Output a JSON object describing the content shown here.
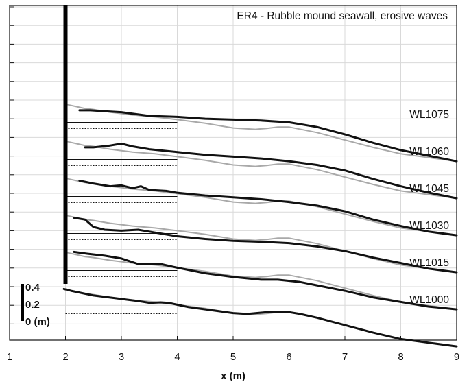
{
  "chart_data": {
    "type": "line",
    "title": "ER4 - Rubble mound seawall, erosive waves",
    "xlabel": "x (m)",
    "ylabel": "",
    "xlim": [
      1,
      9
    ],
    "x_ticks": [
      "1",
      "2",
      "3",
      "4",
      "5",
      "6",
      "7",
      "8",
      "9"
    ],
    "y_ticks_labeled": false,
    "grid": true,
    "offset_scale": {
      "labels": [
        "0.4",
        "0.2",
        "0 (m)"
      ]
    },
    "structure": {
      "name": "seawall",
      "x": 2.0
    },
    "colors": {
      "measured": "#111111",
      "reference": "#a9a9a9",
      "water": "#111111",
      "grid": "#d9d9d9"
    },
    "series": [
      {
        "name": "WL1000",
        "offset_m": 0.0,
        "x": [
          1.97,
          2.1,
          2.3,
          2.5,
          2.7,
          2.9,
          3.1,
          3.3,
          3.5,
          3.7,
          3.85,
          4.0,
          4.2,
          4.5,
          5.0,
          5.25,
          5.4,
          5.6,
          5.8,
          6.0,
          6.2,
          6.5,
          7.0,
          7.5,
          8.0,
          8.5,
          9.0
        ],
        "y": [
          0.33,
          0.31,
          0.285,
          0.26,
          0.245,
          0.23,
          0.215,
          0.2,
          0.18,
          0.185,
          0.18,
          0.16,
          0.135,
          0.11,
          0.07,
          0.06,
          0.068,
          0.08,
          0.085,
          0.08,
          0.06,
          0.02,
          -0.06,
          -0.14,
          -0.21,
          -0.25,
          -0.29
        ]
      },
      {
        "name": "WL1015",
        "offset_m": 0.4,
        "x": [
          2.15,
          2.4,
          2.7,
          3.0,
          3.3,
          3.5,
          3.7,
          4.0,
          4.5,
          5.0,
          5.5,
          5.8,
          6.2,
          6.5,
          7.0,
          7.5,
          8.0,
          8.5,
          9.0
        ],
        "y": [
          0.33,
          0.31,
          0.29,
          0.26,
          0.2,
          0.2,
          0.2,
          0.16,
          0.1,
          0.06,
          0.03,
          0.03,
          0.005,
          -0.03,
          -0.09,
          -0.16,
          -0.21,
          -0.26,
          -0.29
        ]
      },
      {
        "name": "WL1030",
        "offset_m": 0.8,
        "x": [
          2.15,
          2.35,
          2.5,
          2.7,
          3.0,
          3.3,
          3.5,
          4.0,
          4.5,
          5.0,
          5.5,
          6.0,
          6.5,
          7.0,
          7.5,
          8.0,
          8.5,
          9.0
        ],
        "y": [
          0.3,
          0.28,
          0.2,
          0.17,
          0.16,
          0.17,
          0.15,
          0.1,
          0.07,
          0.05,
          0.04,
          0.025,
          -0.01,
          -0.06,
          -0.13,
          -0.19,
          -0.25,
          -0.29
        ]
      },
      {
        "name": "WL1045",
        "offset_m": 1.2,
        "x": [
          2.25,
          2.5,
          2.8,
          3.0,
          3.2,
          3.35,
          3.5,
          3.8,
          4.0,
          4.5,
          5.0,
          5.5,
          6.0,
          6.5,
          7.0,
          7.5,
          8.0,
          8.5,
          9.0
        ],
        "y": [
          0.3,
          0.27,
          0.24,
          0.25,
          0.22,
          0.24,
          0.2,
          0.19,
          0.17,
          0.14,
          0.12,
          0.1,
          0.07,
          0.03,
          -0.03,
          -0.12,
          -0.19,
          -0.25,
          -0.29
        ]
      },
      {
        "name": "WL1060",
        "offset_m": 1.6,
        "x": [
          2.35,
          2.5,
          2.8,
          3.0,
          3.2,
          3.5,
          4.0,
          4.5,
          5.0,
          5.5,
          6.0,
          6.5,
          7.0,
          7.5,
          8.0,
          8.5,
          9.0
        ],
        "y": [
          0.26,
          0.26,
          0.28,
          0.3,
          0.27,
          0.24,
          0.21,
          0.18,
          0.16,
          0.14,
          0.11,
          0.07,
          0.01,
          -0.08,
          -0.16,
          -0.23,
          -0.29
        ]
      },
      {
        "name": "WL1075",
        "offset_m": 2.0,
        "x": [
          2.25,
          2.45,
          2.7,
          3.0,
          3.5,
          4.0,
          4.5,
          5.0,
          5.5,
          6.0,
          6.5,
          7.0,
          7.5,
          8.0,
          8.5,
          9.0
        ],
        "y": [
          0.26,
          0.26,
          0.25,
          0.24,
          0.2,
          0.19,
          0.17,
          0.16,
          0.15,
          0.13,
          0.08,
          0.0,
          -0.09,
          -0.17,
          -0.23,
          -0.29
        ]
      }
    ],
    "reference_profile": {
      "x": [
        1.97,
        2.05,
        2.2,
        2.35,
        2.5,
        2.8,
        3.2,
        3.6,
        4.0,
        4.5,
        5.0,
        5.4,
        5.6,
        5.8,
        6.0,
        6.5,
        7.0,
        7.5,
        8.0,
        8.5,
        9.0
      ],
      "y": [
        0.33,
        0.32,
        0.3,
        0.28,
        0.27,
        0.24,
        0.21,
        0.19,
        0.16,
        0.12,
        0.07,
        0.055,
        0.065,
        0.08,
        0.08,
        0.02,
        -0.06,
        -0.14,
        -0.21,
        -0.25,
        -0.29
      ]
    },
    "crest_lines": {
      "x": [
        2.0,
        4.0
      ],
      "upper_offset_m": 0.13,
      "lower_offset_m": 0.065
    }
  }
}
